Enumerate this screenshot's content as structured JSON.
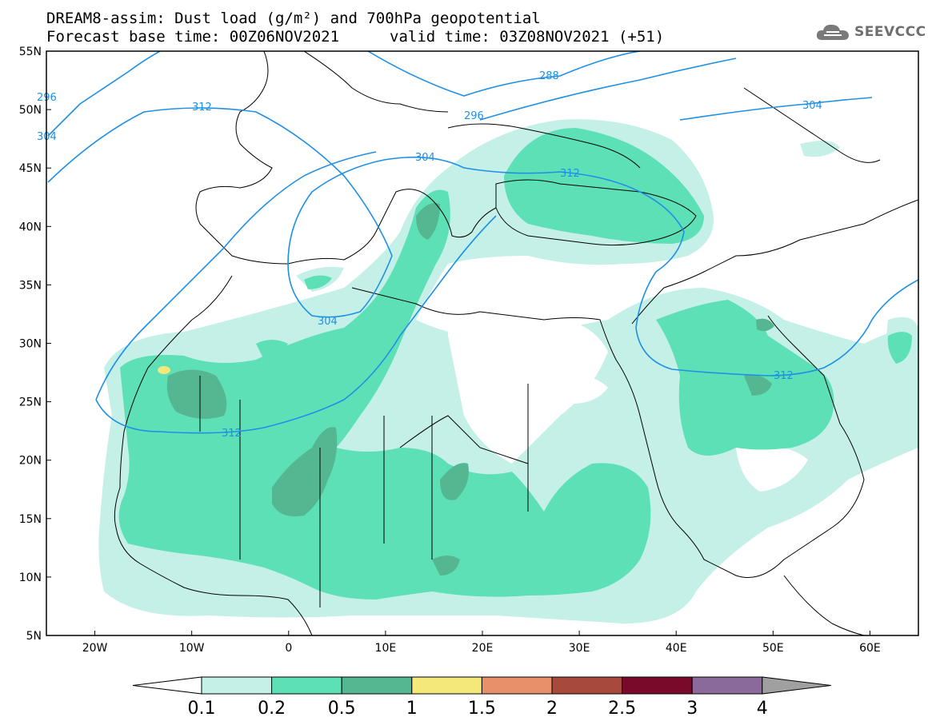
{
  "header": {
    "title_line1": "DREAM8-assim: Dust load (g/m²) and 700hPa geopotential",
    "title_line2": "Forecast base time: 00Z06NOV2021",
    "valid_time": "valid time: 03Z08NOV2021 (+51)"
  },
  "logo": {
    "text": "SEEVCCC",
    "icon": "cloud-icon",
    "color": "#6e6e6e"
  },
  "map": {
    "lat_labels": [
      "55N",
      "50N",
      "45N",
      "40N",
      "35N",
      "30N",
      "25N",
      "20N",
      "15N",
      "10N",
      "5N"
    ],
    "lon_labels": [
      "20W",
      "10W",
      "0",
      "10E",
      "20E",
      "30E",
      "40E",
      "50E",
      "60E"
    ],
    "lon_range": [
      -25,
      65
    ],
    "lat_range": [
      5,
      55
    ],
    "contour_color": "#1e90e6",
    "contour_labels": [
      "312",
      "304",
      "296",
      "288",
      "296",
      "304",
      "312",
      "304",
      "312",
      "312",
      "304"
    ]
  },
  "colorbar": {
    "ticks": [
      "0.1",
      "0.2",
      "0.5",
      "1",
      "1.5",
      "2",
      "2.5",
      "3",
      "4"
    ],
    "colors": [
      "#ffffff",
      "#c4f0e8",
      "#5ee0b7",
      "#55b792",
      "#f4e87a",
      "#e8906a",
      "#a8493e",
      "#7a0a2a",
      "#8a6a9a",
      "#a0a0a0"
    ]
  }
}
